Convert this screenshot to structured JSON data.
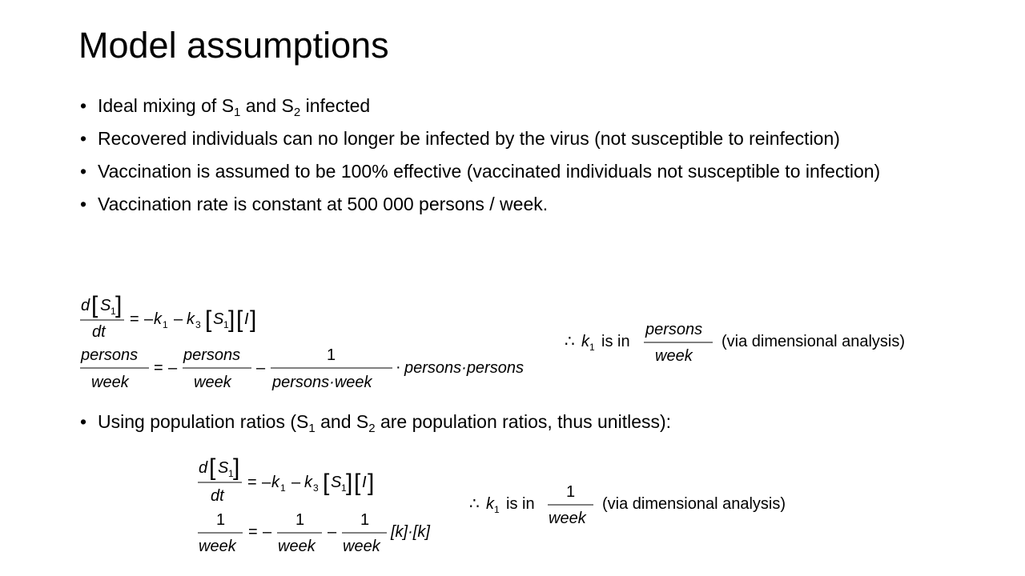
{
  "slide": {
    "title": "Model assumptions",
    "bullets": [
      {
        "parts": [
          "Ideal mixing of S",
          "1",
          " and S",
          "2",
          " infected"
        ]
      },
      {
        "text": "Recovered individuals can no longer be infected by the virus (not susceptible to reinfection)"
      },
      {
        "text": "Vaccination is assumed to be 100% effective (vaccinated individuals not susceptible to infection)"
      },
      {
        "text": "Vaccination rate is constant at 500 000 persons / week."
      }
    ],
    "bullet_population": {
      "parts": [
        "Using population ratios (S",
        "1",
        " and S",
        "2",
        " are population ratios, thus unitless):"
      ]
    }
  },
  "equations": {
    "d": "d",
    "dt": "dt",
    "S": "S",
    "k": "k",
    "I": "I",
    "one": "1",
    "three": "3",
    "equals": "=",
    "minus": "–",
    "dot": "·",
    "lbracket": "[",
    "rbracket": "]",
    "therefore": "∴",
    "is_in": "is in",
    "via": "(via dimensional analysis)",
    "persons": "persons",
    "week": "week",
    "persons_week": "persons·week",
    "persons_persons": "persons·persons",
    "k_bracket_product": "[k]·[k]"
  }
}
